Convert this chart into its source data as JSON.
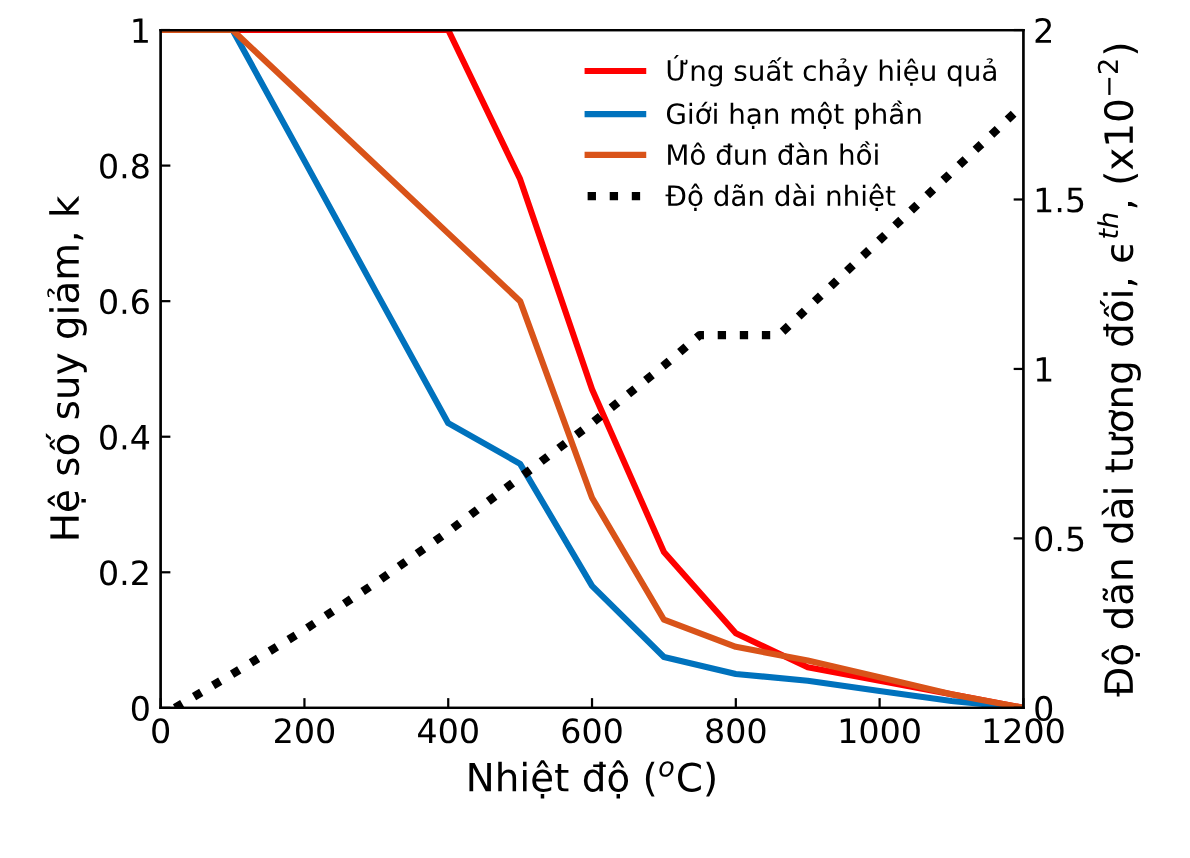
{
  "chart_data": {
    "type": "line",
    "xlabel": "Nhiệt độ ($^{o}$C)",
    "ylabel": "Hệ số suy giảm, k",
    "y2label": "Độ dãn dài tương đối, ϵ$^{th}$, (x10$^{−2}$)",
    "xlim": [
      0,
      1200
    ],
    "xticks": [
      0,
      200,
      400,
      600,
      800,
      1000,
      1200
    ],
    "ylim": [
      0,
      1
    ],
    "yticks": [
      0,
      0.2,
      0.4,
      0.6,
      0.8,
      1
    ],
    "y2lim": [
      0,
      2
    ],
    "y2ticks": [
      0,
      0.5,
      1,
      1.5,
      2
    ],
    "grid": false,
    "legend": "top right",
    "marker": "none",
    "series": [
      {
        "name": "Ứng suất chảy hiệu quả",
        "color": "#ff0000",
        "x": [
          0,
          100,
          200,
          300,
          400,
          500,
          600,
          700,
          800,
          900,
          1000,
          1100,
          1200
        ],
        "values": [
          1,
          1,
          1,
          1,
          1,
          0.78,
          0.47,
          0.23,
          0.11,
          0.06,
          0.04,
          0.02,
          0
        ]
      },
      {
        "name": "Giới hạn một phần",
        "color": "#0072bd",
        "x": [
          0,
          100,
          200,
          300,
          400,
          500,
          600,
          700,
          800,
          900,
          1000,
          1100,
          1200
        ],
        "values": [
          1,
          1,
          0.807,
          0.613,
          0.42,
          0.36,
          0.18,
          0.075,
          0.05,
          0.04,
          0.025,
          0.01,
          0
        ]
      },
      {
        "name": "Mô đun đàn hồi",
        "color": "#d95319",
        "x": [
          0,
          100,
          200,
          300,
          400,
          500,
          600,
          700,
          800,
          900,
          1000,
          1100,
          1200
        ],
        "values": [
          1,
          1,
          0.9,
          0.8,
          0.7,
          0.6,
          0.31,
          0.13,
          0.09,
          0.07,
          0.045,
          0.02,
          0
        ]
      },
      {
        "name": "Độ dãn dài nhiệt",
        "color": "#000000",
        "axis": "y2",
        "line_style": "dotted",
        "x": [
          20,
          100,
          200,
          300,
          400,
          500,
          600,
          700,
          750,
          860,
          900,
          1000,
          1100,
          1200
        ],
        "values": [
          0,
          0.1,
          0.23,
          0.37,
          0.52,
          0.68,
          0.84,
          1.01,
          1.1,
          1.1,
          1.18,
          1.38,
          1.58,
          1.78
        ]
      }
    ]
  }
}
